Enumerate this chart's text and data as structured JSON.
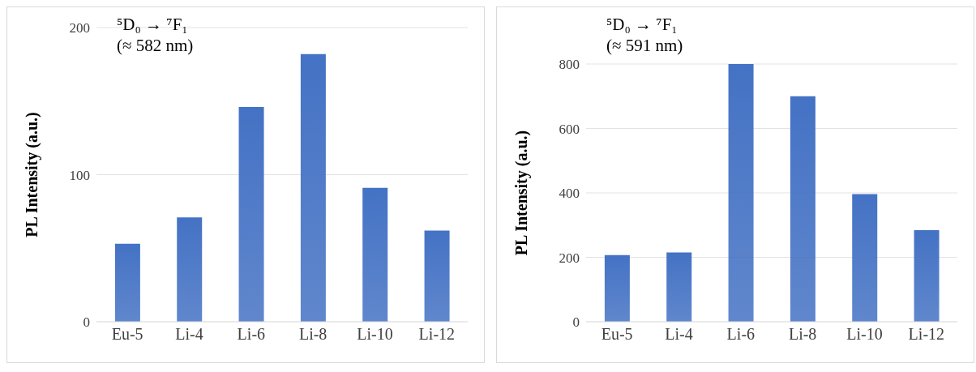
{
  "chart_data": [
    {
      "type": "bar",
      "ylabel": "PL Intensity (a.u.)",
      "annotations": [
        "⁵D₀ → ⁷F₁",
        "(≈ 582 nm)"
      ],
      "categories": [
        "Eu-5",
        "Li-4",
        "Li-6",
        "Li-8",
        "Li-10",
        "Li-12"
      ],
      "values": [
        53,
        71,
        146,
        182,
        91,
        62
      ],
      "color": "#4472c4",
      "ylim": [
        0,
        200
      ],
      "yticks": [
        0,
        100,
        200
      ],
      "grid": "y",
      "legend": false
    },
    {
      "type": "bar",
      "ylabel": "PL Intensity (a.u.)",
      "annotations": [
        "⁵D₀ → ⁷F₁",
        "(≈ 591 nm)"
      ],
      "categories": [
        "Eu-5",
        "Li-4",
        "Li-6",
        "Li-8",
        "Li-10",
        "Li-12"
      ],
      "values": [
        207,
        215,
        800,
        700,
        396,
        284
      ],
      "color": "#4472c4",
      "ylim": [
        0,
        800
      ],
      "yticks": [
        0,
        200,
        400,
        600,
        800
      ],
      "grid": "y",
      "legend": false
    }
  ]
}
